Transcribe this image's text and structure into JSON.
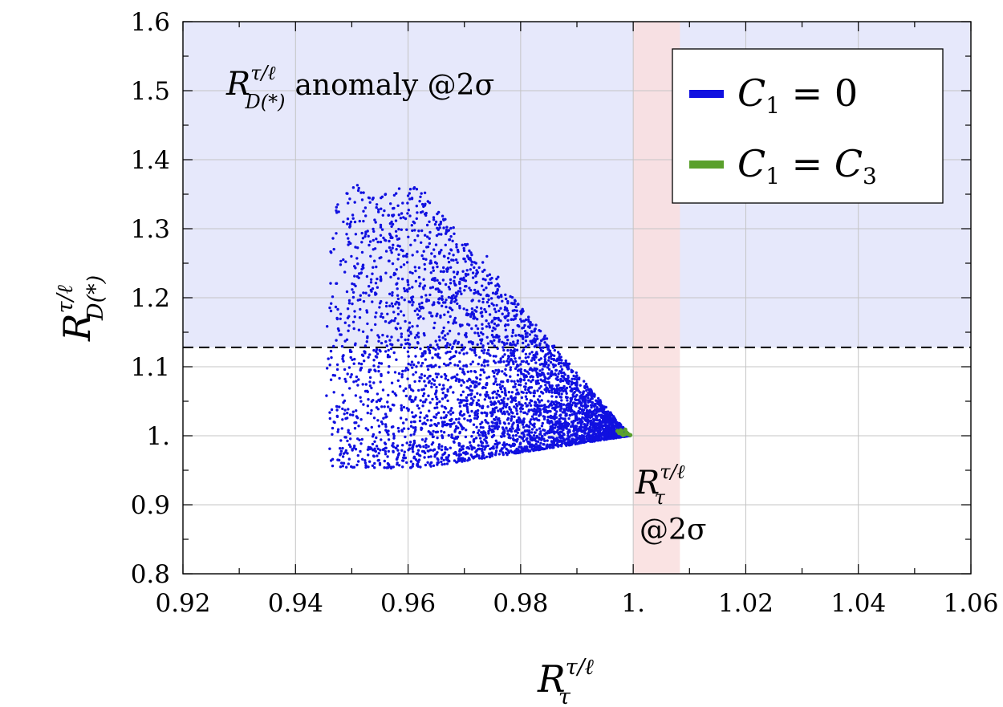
{
  "chart_data": {
    "type": "scatter",
    "xlim": [
      0.92,
      1.06
    ],
    "ylim": [
      0.8,
      1.6
    ],
    "grid": true,
    "legend_position": "top-right",
    "x_ticks": [
      {
        "value": 0.92,
        "label": "0.92"
      },
      {
        "value": 0.94,
        "label": "0.94"
      },
      {
        "value": 0.96,
        "label": "0.96"
      },
      {
        "value": 0.98,
        "label": "0.98"
      },
      {
        "value": 1.0,
        "label": "1."
      },
      {
        "value": 1.02,
        "label": "1.02"
      },
      {
        "value": 1.04,
        "label": "1.04"
      },
      {
        "value": 1.06,
        "label": "1.06"
      }
    ],
    "y_ticks": [
      {
        "value": 0.8,
        "label": "0.8"
      },
      {
        "value": 0.9,
        "label": "0.9"
      },
      {
        "value": 1.0,
        "label": "1."
      },
      {
        "value": 1.1,
        "label": "1.1"
      },
      {
        "value": 1.2,
        "label": "1.2"
      },
      {
        "value": 1.3,
        "label": "1.3"
      },
      {
        "value": 1.4,
        "label": "1.4"
      },
      {
        "value": 1.5,
        "label": "1.5"
      },
      {
        "value": 1.6,
        "label": "1.6"
      }
    ],
    "xlabel": {
      "base": "R",
      "sup": "τ/ℓ",
      "sub": "τ"
    },
    "ylabel": {
      "base": "R",
      "sup": "τ/ℓ",
      "sub": "D(*)"
    },
    "regions": [
      {
        "kind": "horizontal-band",
        "y_from": 1.128,
        "y_to": 1.6,
        "color": "#e6e8fb"
      },
      {
        "kind": "vertical-band",
        "x_from": 1.0,
        "x_to": 1.0083,
        "color": "#f9dede"
      }
    ],
    "reference_lines": [
      {
        "kind": "horizontal-dashed",
        "y": 1.128,
        "color": "#000000"
      }
    ],
    "annotations": [
      {
        "base": "R",
        "sup": "τ/ℓ",
        "sub": "D(*)",
        "text": "anomaly @2σ"
      },
      {
        "base": "R",
        "sup": "τ/ℓ",
        "sub": "τ",
        "text": "@2σ"
      }
    ],
    "series": [
      {
        "name": "C₁ = 0",
        "label_parts": [
          "C",
          "1",
          " = 0"
        ],
        "color": "#1010e0",
        "description": "dense triangular cloud, apex at (1.0, 1.0)",
        "envelope": {
          "apex": [
            0.9995,
            1.0
          ],
          "left_x": [
            0.9455,
            0.9475
          ],
          "y_bottom_left": 0.955,
          "y_top_left": 1.36,
          "y_top_right_slope_from": [
            0.962,
            1.36
          ],
          "y_bottom_right_at": [
            0.98,
            0.985
          ]
        },
        "sample_points": [
          [
            0.9475,
            1.335
          ],
          [
            0.9485,
            1.31
          ],
          [
            0.951,
            1.363
          ],
          [
            0.953,
            1.345
          ],
          [
            0.956,
            1.35
          ],
          [
            0.961,
            1.358
          ],
          [
            0.963,
            1.352
          ],
          [
            0.965,
            1.31
          ],
          [
            0.9455,
            1.058
          ],
          [
            0.9465,
            1.002
          ],
          [
            0.9475,
            0.965
          ],
          [
            0.948,
            0.955
          ],
          [
            0.955,
            0.958
          ],
          [
            0.957,
            0.953
          ],
          [
            0.962,
            0.965
          ],
          [
            0.97,
            0.975
          ],
          [
            0.974,
            1.26
          ],
          [
            0.976,
            1.23
          ],
          [
            0.98,
            1.18
          ],
          [
            0.985,
            1.12
          ],
          [
            0.99,
            1.075
          ],
          [
            0.995,
            1.03
          ],
          [
            0.998,
            1.01
          ],
          [
            0.999,
            1.0
          ]
        ]
      },
      {
        "name": "C₁ = C₃",
        "label_parts": [
          "C",
          "1",
          " = ",
          "C",
          "3"
        ],
        "color": "#5aa02c",
        "description": "tight cluster near (0.998, 1.004)",
        "points": [
          [
            0.9975,
            1.004
          ],
          [
            0.998,
            1.006
          ],
          [
            0.9985,
            1.002
          ],
          [
            0.999,
            1.003
          ],
          [
            0.9978,
            1.008
          ],
          [
            0.9982,
            1.001
          ],
          [
            0.9988,
            1.005
          ],
          [
            0.9992,
            1.002
          ],
          [
            0.9972,
            1.007
          ],
          [
            0.9995,
            1.001
          ],
          [
            0.9986,
            1.009
          ],
          [
            0.9979,
            1.003
          ]
        ]
      }
    ]
  }
}
